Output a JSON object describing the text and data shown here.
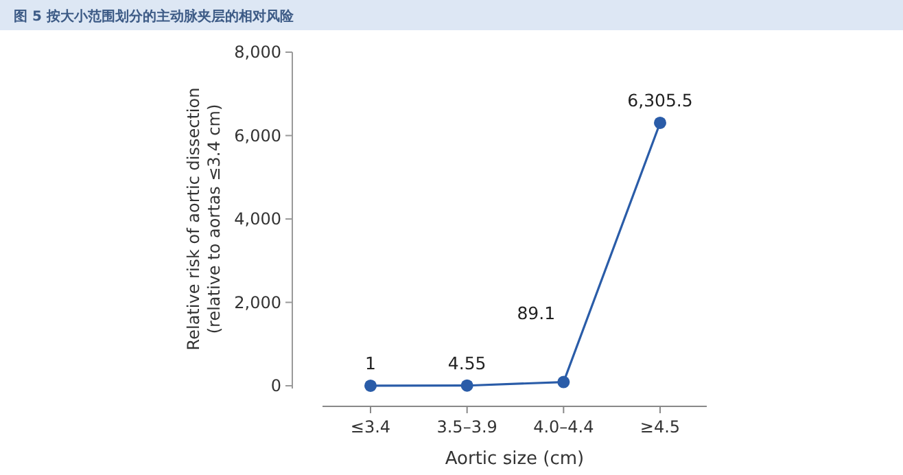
{
  "chart_data": {
    "type": "line",
    "title": "图 5 按大小范围划分的主动脉夹层的相对风险",
    "xlabel": "Aortic size (cm)",
    "ylabel": "Relative risk of aortic dissection\n(relative to aortas ≤3.4 cm)",
    "categories": [
      "≤3.4",
      "3.5–3.9",
      "4.0–4.4",
      "≥4.5"
    ],
    "series": [
      {
        "color": "#2a5ca8",
        "values": [
          1,
          4.55,
          89.1,
          6305.5
        ]
      }
    ],
    "value_labels": [
      "1",
      "4.55",
      "89.1",
      "6,305.5"
    ],
    "ylim": [
      0,
      8000
    ],
    "yticks": [
      {
        "value": 0,
        "label": "0"
      },
      {
        "value": 2000,
        "label": "2,000"
      },
      {
        "value": 4000,
        "label": "4,000"
      },
      {
        "value": 6000,
        "label": "6,000"
      },
      {
        "value": 8000,
        "label": "8,000"
      }
    ],
    "grid": false,
    "marker": "circle",
    "line_style": "solid"
  }
}
